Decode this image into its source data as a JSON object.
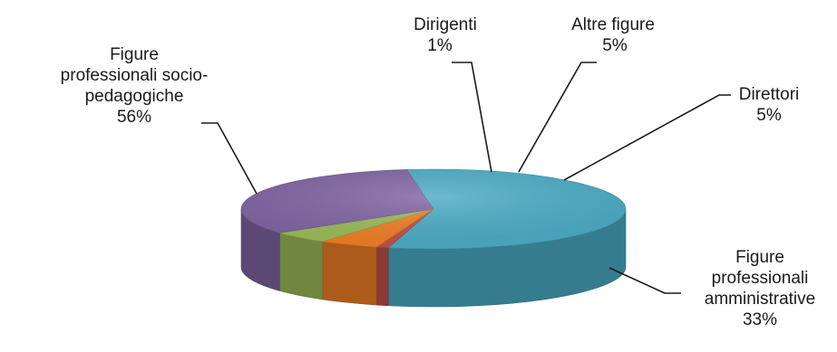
{
  "chart_data": {
    "type": "pie",
    "title": "",
    "legend": "none",
    "style": "3d",
    "slices": [
      {
        "name": "Figure professionali socio-pedagogiche",
        "label_lines": [
          "Figure",
          "professionali socio-",
          "pedagogiche"
        ],
        "value": 56,
        "value_label": "56%",
        "color": "#4bacc6"
      },
      {
        "name": "Dirigenti",
        "label_lines": [
          "Dirigenti"
        ],
        "value": 1,
        "value_label": "1%",
        "color": "#c0504d"
      },
      {
        "name": "Altre figure",
        "label_lines": [
          "Altre figure"
        ],
        "value": 5,
        "value_label": "5%",
        "color": "#f07f24"
      },
      {
        "name": "Direttori",
        "label_lines": [
          "Direttori"
        ],
        "value": 5,
        "value_label": "5%",
        "color": "#9bbb59"
      },
      {
        "name": "Figure professionali amministrative",
        "label_lines": [
          "Figure",
          "professionali",
          "amministrative"
        ],
        "value": 33,
        "value_label": "33%",
        "color": "#8064a2"
      }
    ]
  }
}
